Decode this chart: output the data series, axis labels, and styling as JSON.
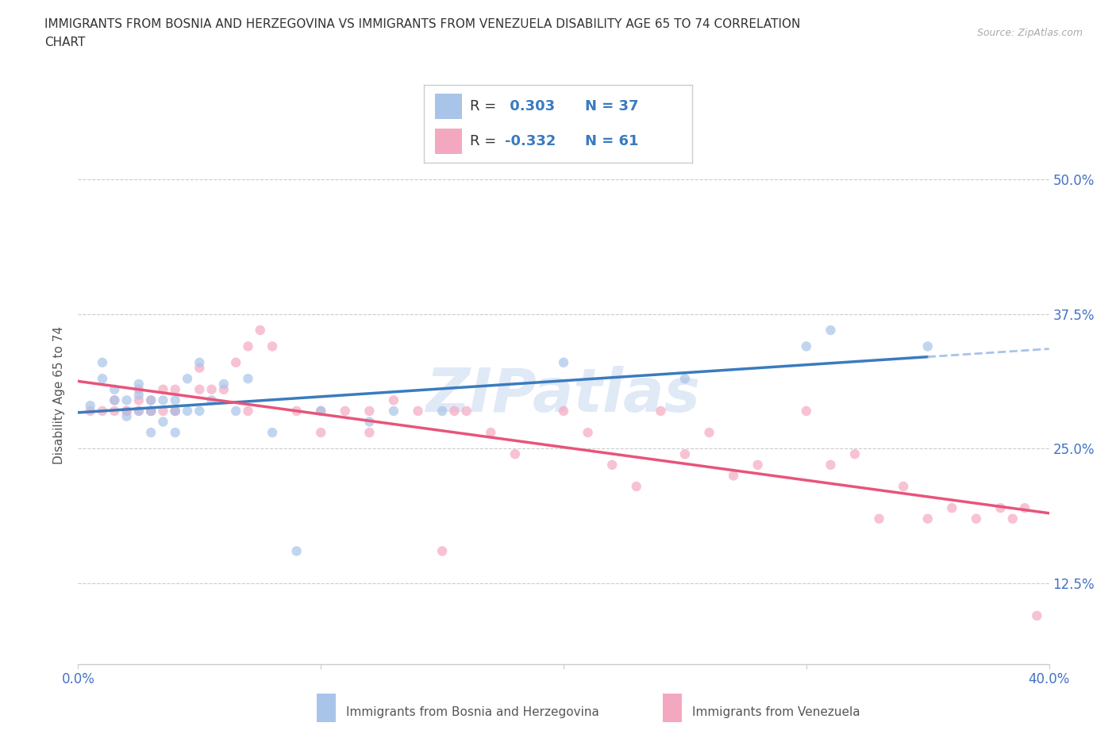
{
  "title_line1": "IMMIGRANTS FROM BOSNIA AND HERZEGOVINA VS IMMIGRANTS FROM VENEZUELA DISABILITY AGE 65 TO 74 CORRELATION",
  "title_line2": "CHART",
  "source_text": "Source: ZipAtlas.com",
  "ylabel": "Disability Age 65 to 74",
  "x_min": 0.0,
  "x_max": 0.4,
  "y_min": 0.05,
  "y_max": 0.55,
  "x_ticks": [
    0.0,
    0.1,
    0.2,
    0.3,
    0.4
  ],
  "x_tick_labels": [
    "0.0%",
    "",
    "",
    "",
    "40.0%"
  ],
  "y_ticks": [
    0.125,
    0.25,
    0.375,
    0.5
  ],
  "y_tick_labels_right": [
    "12.5%",
    "25.0%",
    "37.5%",
    "50.0%"
  ],
  "bosnia_color": "#a8c4e8",
  "venezuela_color": "#f4a8c0",
  "trend_line_bosnia_color": "#3a7bbf",
  "trend_line_venezuela_color": "#e8547a",
  "trend_line_bosnia_dashed_color": "#a8c4e8",
  "r_bosnia": 0.303,
  "n_bosnia": 37,
  "r_venezuela": -0.332,
  "n_venezuela": 61,
  "legend_r_color": "#3a7bbf",
  "legend_n_color": "#3a7bbf",
  "bosnia_x": [
    0.005,
    0.01,
    0.01,
    0.015,
    0.015,
    0.02,
    0.02,
    0.025,
    0.025,
    0.025,
    0.03,
    0.03,
    0.03,
    0.035,
    0.035,
    0.04,
    0.04,
    0.04,
    0.045,
    0.045,
    0.05,
    0.05,
    0.055,
    0.06,
    0.065,
    0.07,
    0.08,
    0.09,
    0.1,
    0.12,
    0.13,
    0.15,
    0.2,
    0.25,
    0.3,
    0.31,
    0.35
  ],
  "bosnia_y": [
    0.29,
    0.315,
    0.33,
    0.295,
    0.305,
    0.28,
    0.295,
    0.285,
    0.3,
    0.31,
    0.265,
    0.285,
    0.295,
    0.275,
    0.295,
    0.265,
    0.285,
    0.295,
    0.285,
    0.315,
    0.285,
    0.33,
    0.295,
    0.31,
    0.285,
    0.315,
    0.265,
    0.155,
    0.285,
    0.275,
    0.285,
    0.285,
    0.33,
    0.315,
    0.345,
    0.36,
    0.345
  ],
  "venezuela_x": [
    0.005,
    0.01,
    0.015,
    0.015,
    0.02,
    0.02,
    0.025,
    0.025,
    0.025,
    0.03,
    0.03,
    0.03,
    0.03,
    0.035,
    0.035,
    0.04,
    0.04,
    0.04,
    0.05,
    0.05,
    0.055,
    0.06,
    0.065,
    0.07,
    0.07,
    0.075,
    0.08,
    0.09,
    0.1,
    0.1,
    0.11,
    0.12,
    0.12,
    0.13,
    0.14,
    0.15,
    0.155,
    0.16,
    0.17,
    0.18,
    0.2,
    0.21,
    0.22,
    0.23,
    0.24,
    0.25,
    0.26,
    0.27,
    0.28,
    0.3,
    0.31,
    0.32,
    0.33,
    0.34,
    0.35,
    0.36,
    0.37,
    0.38,
    0.385,
    0.39,
    0.395
  ],
  "venezuela_y": [
    0.285,
    0.285,
    0.285,
    0.295,
    0.285,
    0.285,
    0.285,
    0.295,
    0.305,
    0.285,
    0.285,
    0.285,
    0.295,
    0.285,
    0.305,
    0.285,
    0.285,
    0.305,
    0.305,
    0.325,
    0.305,
    0.305,
    0.33,
    0.285,
    0.345,
    0.36,
    0.345,
    0.285,
    0.265,
    0.285,
    0.285,
    0.265,
    0.285,
    0.295,
    0.285,
    0.155,
    0.285,
    0.285,
    0.265,
    0.245,
    0.285,
    0.265,
    0.235,
    0.215,
    0.285,
    0.245,
    0.265,
    0.225,
    0.235,
    0.285,
    0.235,
    0.245,
    0.185,
    0.215,
    0.185,
    0.195,
    0.185,
    0.195,
    0.185,
    0.195,
    0.095
  ]
}
